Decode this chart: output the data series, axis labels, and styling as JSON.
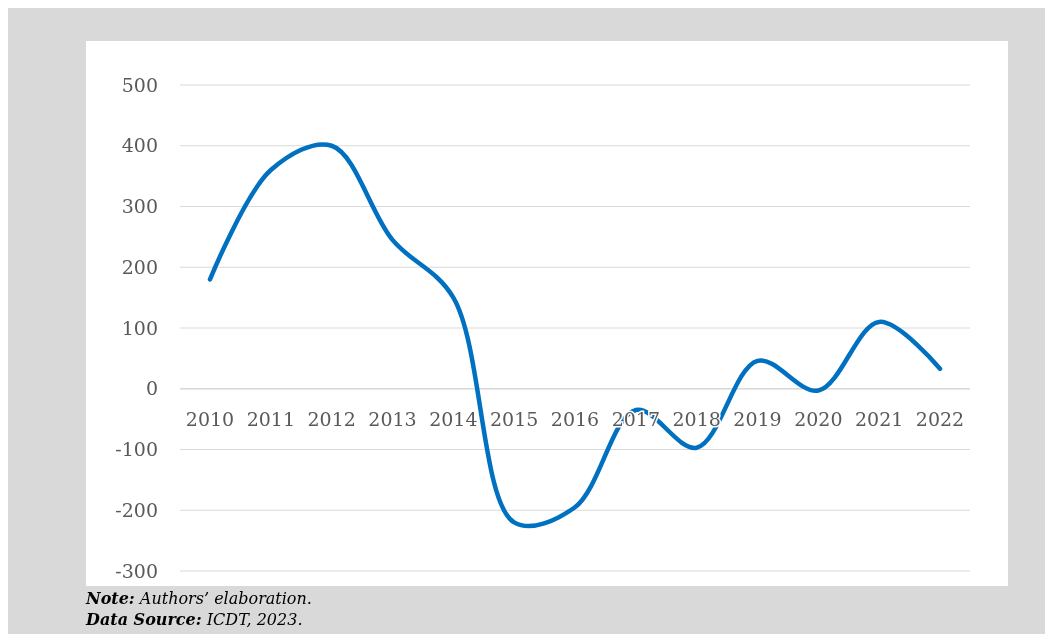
{
  "chart_data": {
    "type": "line",
    "categories": [
      "2010",
      "2011",
      "2012",
      "2013",
      "2014",
      "2015",
      "2016",
      "2017",
      "2018",
      "2019",
      "2020",
      "2021",
      "2022"
    ],
    "series": [
      {
        "color": "#0070c0",
        "values": [
          180,
          360,
          400,
          245,
          150,
          -220,
          -195,
          -35,
          -97,
          46,
          -3,
          110,
          33
        ]
      }
    ],
    "ylim": [
      -300,
      500
    ],
    "yticks": [
      -300,
      -200,
      -100,
      0,
      100,
      200,
      300,
      400,
      500
    ],
    "grid": "y",
    "annotations": [
      "Note: Authors’ elaboration.",
      "Data Source: ICDT, 2023."
    ]
  }
}
